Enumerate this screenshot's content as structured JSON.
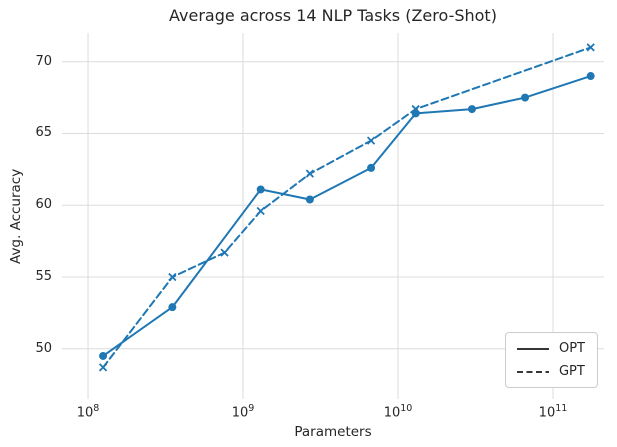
{
  "chart_data": {
    "type": "line",
    "title": "Average across 14 NLP Tasks (Zero-Shot)",
    "xlabel": "Parameters",
    "ylabel": "Avg. Accuracy",
    "x_scale": "log",
    "xlim_log10": [
      7.832,
      11.329
    ],
    "ylim": [
      46.5,
      72
    ],
    "xticks_log10": [
      8,
      9,
      10,
      11
    ],
    "yticks": [
      50,
      55,
      60,
      65,
      70
    ],
    "grid": true,
    "legend_position": "lower right",
    "colors": {
      "line": "#1f77b4",
      "grid": "#dcdcdc",
      "text": "#262626",
      "legend_line": "#1a1a1a",
      "legend_border": "#cccccc"
    },
    "series": [
      {
        "name": "OPT",
        "linestyle": "solid",
        "marker": "circle",
        "x": [
          125000000,
          350000000,
          1300000000,
          2700000000,
          6700000000,
          13000000000,
          30000000000,
          66000000000,
          175000000000
        ],
        "y": [
          49.5,
          52.9,
          61.1,
          60.4,
          62.6,
          66.4,
          66.7,
          67.5,
          69.0
        ]
      },
      {
        "name": "GPT",
        "linestyle": "dashed",
        "marker": "x",
        "x": [
          125000000,
          350000000,
          760000000,
          1300000000,
          2700000000,
          6700000000,
          13000000000,
          175000000000
        ],
        "y": [
          48.7,
          55.0,
          56.7,
          59.6,
          62.2,
          64.5,
          66.7,
          71.0
        ]
      }
    ]
  }
}
